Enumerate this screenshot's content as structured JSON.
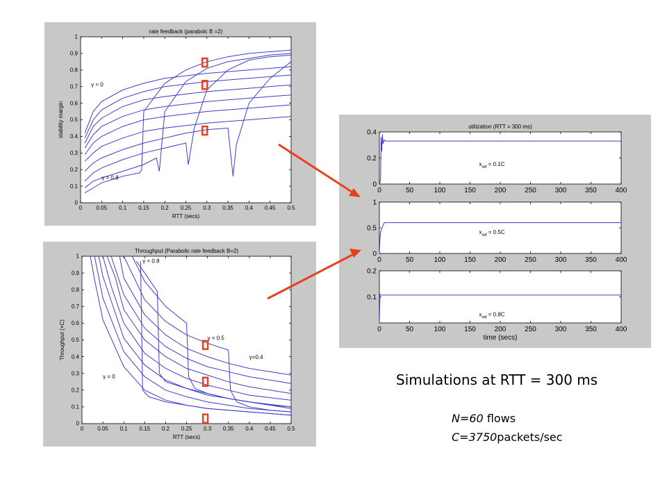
{
  "chart_data": [
    {
      "id": "stability",
      "type": "line",
      "title": "rate feedback (parabolc B =2)",
      "xlabel": "RTT (secs)",
      "ylabel": "stability margin",
      "xlim": [
        0,
        0.5
      ],
      "ylim": [
        0,
        1
      ],
      "xticks": [
        0,
        0.05,
        0.1,
        0.15,
        0.2,
        0.25,
        0.3,
        0.35,
        0.4,
        0.45,
        0.5
      ],
      "yticks": [
        0,
        0.1,
        0.2,
        0.3,
        0.4,
        0.5,
        0.6,
        0.7,
        0.8,
        0.9,
        1
      ],
      "grid": false,
      "line_color": "#3c3ccc",
      "annotations": [
        {
          "text": "γ = 0",
          "x": 0.025,
          "y": 0.7
        },
        {
          "text": "γ = 0.8",
          "x": 0.05,
          "y": 0.14
        }
      ],
      "markers": [
        {
          "x": 0.295,
          "y": 0.845
        },
        {
          "x": 0.295,
          "y": 0.71
        },
        {
          "x": 0.295,
          "y": 0.435
        }
      ],
      "series": [
        {
          "x": [
            0.01,
            0.03,
            0.05,
            0.1,
            0.15,
            0.2,
            0.3,
            0.4,
            0.5
          ],
          "values": [
            0.42,
            0.55,
            0.61,
            0.68,
            0.72,
            0.75,
            0.78,
            0.8,
            0.82
          ]
        },
        {
          "x": [
            0.01,
            0.03,
            0.05,
            0.1,
            0.15,
            0.2,
            0.3,
            0.4,
            0.5
          ],
          "values": [
            0.39,
            0.5,
            0.56,
            0.63,
            0.67,
            0.7,
            0.73,
            0.75,
            0.77
          ]
        },
        {
          "x": [
            0.01,
            0.03,
            0.05,
            0.1,
            0.15,
            0.2,
            0.3,
            0.4,
            0.5
          ],
          "values": [
            0.36,
            0.46,
            0.51,
            0.58,
            0.62,
            0.64,
            0.67,
            0.69,
            0.71
          ]
        },
        {
          "x": [
            0.01,
            0.03,
            0.05,
            0.1,
            0.15,
            0.2,
            0.3,
            0.4,
            0.5
          ],
          "values": [
            0.33,
            0.41,
            0.46,
            0.52,
            0.56,
            0.58,
            0.61,
            0.63,
            0.65
          ]
        },
        {
          "x": [
            0.01,
            0.03,
            0.05,
            0.1,
            0.15,
            0.2,
            0.3,
            0.4,
            0.5
          ],
          "values": [
            0.29,
            0.36,
            0.4,
            0.46,
            0.5,
            0.52,
            0.55,
            0.57,
            0.59
          ]
        },
        {
          "x": [
            0.01,
            0.03,
            0.05,
            0.1,
            0.15,
            0.2,
            0.3,
            0.4,
            0.5
          ],
          "values": [
            0.25,
            0.3,
            0.34,
            0.39,
            0.43,
            0.45,
            0.48,
            0.5,
            0.52
          ]
        },
        {
          "x": [
            0.01,
            0.03,
            0.05,
            0.1,
            0.15,
            0.2,
            0.25,
            0.3,
            0.35,
            0.362,
            0.37,
            0.4,
            0.45,
            0.5
          ],
          "values": [
            0.19,
            0.24,
            0.27,
            0.32,
            0.36,
            0.39,
            0.42,
            0.44,
            0.45,
            0.16,
            0.35,
            0.6,
            0.75,
            0.85
          ]
        },
        {
          "x": [
            0.01,
            0.03,
            0.05,
            0.1,
            0.15,
            0.2,
            0.25,
            0.256,
            0.27,
            0.3,
            0.35,
            0.4,
            0.45,
            0.5
          ],
          "values": [
            0.13,
            0.18,
            0.21,
            0.26,
            0.3,
            0.33,
            0.36,
            0.23,
            0.45,
            0.68,
            0.8,
            0.86,
            0.88,
            0.89
          ]
        },
        {
          "x": [
            0.01,
            0.03,
            0.05,
            0.1,
            0.15,
            0.18,
            0.187,
            0.2,
            0.25,
            0.3,
            0.35,
            0.4,
            0.45,
            0.5
          ],
          "values": [
            0.09,
            0.13,
            0.15,
            0.19,
            0.23,
            0.27,
            0.19,
            0.55,
            0.73,
            0.81,
            0.85,
            0.87,
            0.89,
            0.9
          ]
        },
        {
          "x": [
            0.01,
            0.03,
            0.05,
            0.1,
            0.14,
            0.145,
            0.15,
            0.2,
            0.25,
            0.3,
            0.35,
            0.4,
            0.45,
            0.5
          ],
          "values": [
            0.06,
            0.09,
            0.12,
            0.16,
            0.18,
            0.2,
            0.55,
            0.72,
            0.8,
            0.85,
            0.88,
            0.9,
            0.91,
            0.92
          ]
        }
      ]
    },
    {
      "id": "throughput",
      "type": "line",
      "title": "Throughput (Parabolic rate feedback B=2)",
      "xlabel": "RTT (secs)",
      "ylabel": "Throughput (×C)",
      "xlim": [
        0,
        0.5
      ],
      "ylim": [
        0,
        1
      ],
      "xticks": [
        0,
        0.05,
        0.1,
        0.15,
        0.2,
        0.25,
        0.3,
        0.35,
        0.4,
        0.45,
        0.5
      ],
      "yticks": [
        0,
        0.1,
        0.2,
        0.3,
        0.4,
        0.5,
        0.6,
        0.7,
        0.8,
        0.9,
        1
      ],
      "grid": false,
      "line_color": "#3c3ccc",
      "annotations": [
        {
          "text": "γ = 0.8",
          "x": 0.145,
          "y": 0.96
        },
        {
          "text": "γ = 0.5",
          "x": 0.3,
          "y": 0.5
        },
        {
          "text": "γ=0.4",
          "x": 0.4,
          "y": 0.385
        },
        {
          "text": "γ = 0",
          "x": 0.05,
          "y": 0.27
        }
      ],
      "markers": [
        {
          "x": 0.295,
          "y": 0.47
        },
        {
          "x": 0.295,
          "y": 0.25
        },
        {
          "x": 0.295,
          "y": 0.03
        }
      ],
      "series": [
        {
          "x": [
            0.02,
            0.03,
            0.05,
            0.1,
            0.15,
            0.2,
            0.25,
            0.3,
            0.35,
            0.4,
            0.5
          ],
          "values": [
            1,
            0.86,
            0.62,
            0.34,
            0.2,
            0.14,
            0.11,
            0.09,
            0.08,
            0.07,
            0.05
          ]
        },
        {
          "x": [
            0.03,
            0.05,
            0.1,
            0.15,
            0.2,
            0.25,
            0.3,
            0.35,
            0.4,
            0.5
          ],
          "values": [
            1,
            0.75,
            0.43,
            0.28,
            0.2,
            0.16,
            0.13,
            0.11,
            0.09,
            0.07
          ]
        },
        {
          "x": [
            0.04,
            0.05,
            0.1,
            0.15,
            0.2,
            0.25,
            0.3,
            0.35,
            0.4,
            0.5
          ],
          "values": [
            1,
            0.88,
            0.51,
            0.35,
            0.26,
            0.21,
            0.17,
            0.15,
            0.13,
            0.1
          ]
        },
        {
          "x": [
            0.05,
            0.07,
            0.1,
            0.15,
            0.2,
            0.25,
            0.3,
            0.35,
            0.4,
            0.5
          ],
          "values": [
            1,
            0.82,
            0.6,
            0.42,
            0.33,
            0.27,
            0.23,
            0.2,
            0.17,
            0.14
          ]
        },
        {
          "x": [
            0.06,
            0.08,
            0.1,
            0.15,
            0.2,
            0.25,
            0.3,
            0.35,
            0.4,
            0.5
          ],
          "values": [
            1,
            0.87,
            0.68,
            0.5,
            0.4,
            0.33,
            0.29,
            0.25,
            0.22,
            0.18
          ]
        },
        {
          "x": [
            0.07,
            0.1,
            0.15,
            0.2,
            0.25,
            0.3,
            0.35,
            0.4,
            0.45,
            0.5
          ],
          "values": [
            1,
            0.77,
            0.57,
            0.46,
            0.39,
            0.34,
            0.31,
            0.28,
            0.26,
            0.24
          ]
        },
        {
          "x": [
            0.09,
            0.1,
            0.15,
            0.2,
            0.25,
            0.3,
            0.35,
            0.4,
            0.45,
            0.5
          ],
          "values": [
            1,
            0.87,
            0.65,
            0.53,
            0.45,
            0.4,
            0.36,
            0.33,
            0.31,
            0.29
          ]
        },
        {
          "x": [
            0.1,
            0.15,
            0.2,
            0.25,
            0.3,
            0.35,
            0.355,
            0.37,
            0.4,
            0.45,
            0.5
          ],
          "values": [
            1,
            0.74,
            0.61,
            0.53,
            0.48,
            0.44,
            0.2,
            0.13,
            0.1,
            0.08,
            0.07
          ]
        },
        {
          "x": [
            0.12,
            0.15,
            0.2,
            0.25,
            0.255,
            0.27,
            0.3,
            0.35,
            0.4,
            0.45,
            0.5
          ],
          "values": [
            1,
            0.85,
            0.7,
            0.6,
            0.28,
            0.21,
            0.18,
            0.15,
            0.13,
            0.11,
            0.09
          ]
        },
        {
          "x": [
            0.13,
            0.15,
            0.18,
            0.185,
            0.2,
            0.25,
            0.3,
            0.35,
            0.4,
            0.45,
            0.5
          ],
          "values": [
            0.97,
            0.9,
            0.79,
            0.3,
            0.25,
            0.21,
            0.18,
            0.15,
            0.13,
            0.11,
            0.1
          ]
        },
        {
          "x": [
            0.14,
            0.145,
            0.16,
            0.2,
            0.25,
            0.3,
            0.35,
            0.4,
            0.45,
            0.5
          ],
          "values": [
            0.97,
            0.2,
            0.16,
            0.13,
            0.11,
            0.09,
            0.08,
            0.07,
            0.06,
            0.05
          ]
        }
      ]
    },
    {
      "id": "util1",
      "type": "line",
      "title": "utilization (RTT = 300 ms)",
      "xlabel": "",
      "ylabel": "",
      "xlim": [
        0,
        400
      ],
      "ylim": [
        0,
        0.4
      ],
      "xticks": [
        0,
        50,
        100,
        150,
        200,
        250,
        300,
        350,
        400
      ],
      "yticks": [
        0,
        0.2,
        0.4
      ],
      "ytick_labels": [
        "0",
        "0.2",
        "0.4"
      ],
      "grid": false,
      "line_color": "#3c3ccc",
      "annotations": [
        {
          "text": "x",
          "sub": "ref",
          "rest": " = 0.1C",
          "x": 165,
          "y": 0.14
        }
      ],
      "series": [
        {
          "x": [
            0,
            2,
            3,
            4,
            5,
            6,
            8,
            10,
            400
          ],
          "values": [
            0,
            0.03,
            0.36,
            0.25,
            0.38,
            0.31,
            0.34,
            0.33,
            0.33
          ]
        }
      ]
    },
    {
      "id": "util2",
      "type": "line",
      "title": "",
      "xlabel": "",
      "ylabel": "",
      "xlim": [
        0,
        400
      ],
      "ylim": [
        0,
        1
      ],
      "xticks": [
        0,
        50,
        100,
        150,
        200,
        250,
        300,
        350,
        400
      ],
      "yticks": [
        0,
        0.5,
        1
      ],
      "ytick_labels": [
        "0",
        "0.5",
        "1"
      ],
      "grid": false,
      "line_color": "#3c3ccc",
      "annotations": [
        {
          "text": "x",
          "sub": "ref",
          "rest": " = 0.5C",
          "x": 165,
          "y": 0.38
        }
      ],
      "series": [
        {
          "x": [
            0,
            1,
            2,
            4,
            6,
            8,
            400
          ],
          "values": [
            0,
            0.3,
            0.4,
            0.48,
            0.54,
            0.6,
            0.6
          ]
        }
      ]
    },
    {
      "id": "util3",
      "type": "line",
      "title": "",
      "xlabel": "time (secs)",
      "ylabel": "",
      "xlim": [
        0,
        400
      ],
      "ylim": [
        0,
        0.2
      ],
      "xticks": [
        0,
        50,
        100,
        150,
        200,
        250,
        300,
        350,
        400
      ],
      "yticks": [
        0.1,
        0.2
      ],
      "ytick_labels": [
        "0.1",
        "0.2"
      ],
      "grid": false,
      "line_color": "#3c3ccc",
      "annotations": [
        {
          "text": "x",
          "sub": "ref",
          "rest": " = 0.8C",
          "x": 165,
          "y": 0.025
        }
      ],
      "series": [
        {
          "x": [
            0,
            1,
            2,
            5,
            400
          ],
          "values": [
            0,
            0.11,
            0.107,
            0.107,
            0.107
          ]
        }
      ]
    }
  ],
  "caption": "Simulations at RTT = 300 ms",
  "notes": {
    "flows_value": "N=60",
    "flows_unit": "flows",
    "capacity_value": "C=3750",
    "capacity_unit": "packets/sec"
  },
  "colors": {
    "arrow": "#e8401c",
    "marker": "#e8401c",
    "panel_bg": "#c8c8c8",
    "plot_line": "#3c3ccc"
  }
}
